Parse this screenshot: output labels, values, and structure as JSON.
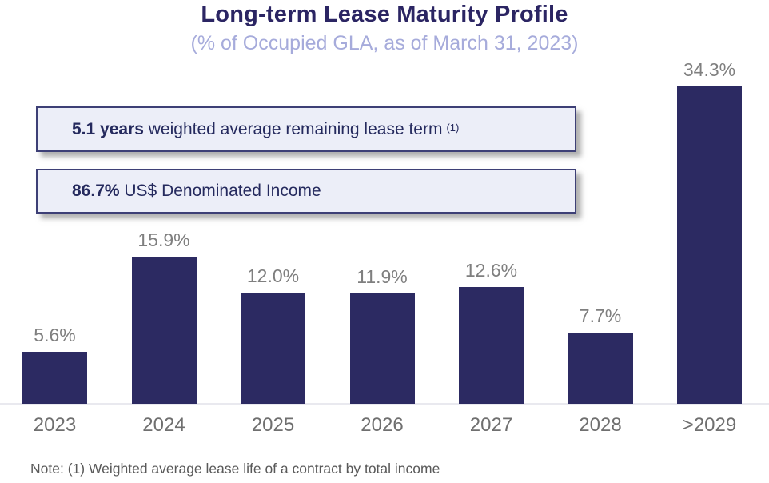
{
  "header": {
    "title": "Long-term Lease Maturity Profile",
    "subtitle": "(% of Occupied GLA, as of March 31, 2023)"
  },
  "callouts": [
    {
      "bold": "5.1 years",
      "text": " weighted average remaining lease term",
      "superscript": "(1)"
    },
    {
      "bold": "86.7%",
      "text": " US$ Denominated Income",
      "superscript": ""
    }
  ],
  "chart_data": {
    "type": "bar",
    "title": "Long-term Lease Maturity Profile",
    "subtitle": "(% of Occupied GLA, as of March 31, 2023)",
    "categories": [
      "2023",
      "2024",
      "2025",
      "2026",
      "2027",
      "2028",
      ">2029"
    ],
    "values": [
      5.6,
      15.9,
      12.0,
      11.9,
      12.6,
      7.7,
      34.3
    ],
    "value_labels": [
      "5.6%",
      "15.9%",
      "12.0%",
      "11.9%",
      "12.6%",
      "7.7%",
      "34.3%"
    ],
    "xlabel": "",
    "ylabel": "",
    "ylim": [
      0,
      35
    ],
    "grid": false,
    "legend": false,
    "bar_color": "#2c2a62",
    "label_color": "#7f7f7f",
    "tick_color": "#6f6f6f"
  },
  "note": "Note: (1) Weighted average lease life of a contract by total income"
}
